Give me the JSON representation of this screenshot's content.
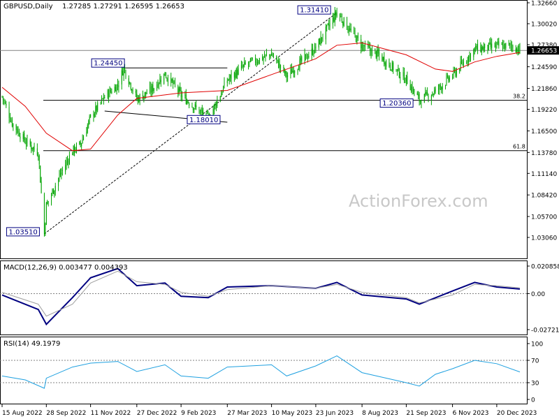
{
  "header": {
    "symbol": "GBPUSD,Daily",
    "quote": "1.27285 1.27291 1.26595 1.26653",
    "watermark": "ActionForex.com"
  },
  "colors": {
    "candle": "#00a400",
    "ma": "#e00000",
    "macd_line": "#000080",
    "macd_signal": "#a0a0a0",
    "rsi": "#1ea0e0",
    "grid": "#000000",
    "price_tag_bg": "#000000"
  },
  "chart_data": [
    {
      "type": "candlestick",
      "title": "GBPUSD,Daily",
      "last_price": "1.26653",
      "y_ticks": [
        "1.32660",
        "1.30020",
        "1.27380",
        "1.24590",
        "1.21860",
        "1.19220",
        "1.16500",
        "1.13780",
        "1.11140",
        "1.08420",
        "1.05700",
        "1.03060"
      ],
      "ylim": [
        1.0306,
        1.3266
      ],
      "x_ticks": [
        "15 Aug 2022",
        "28 Sep 2022",
        "11 Nov 2022",
        "27 Dec 2022",
        "9 Feb 2023",
        "27 Mar 2023",
        "10 May 2023",
        "23 Jun 2023",
        "8 Aug 2023",
        "21 Sep 2023",
        "6 Nov 2023",
        "20 Dec 2023"
      ],
      "close_path": [
        [
          "15 Aug 2022",
          1.2085
        ],
        [
          "2022-08-25",
          1.175
        ],
        [
          "2022-09-07",
          1.152
        ],
        [
          "2022-09-20",
          1.138
        ],
        [
          "2022-09-26",
          1.0351
        ],
        [
          "28 Sep 2022",
          1.071
        ],
        [
          "2022-10-10",
          1.105
        ],
        [
          "2022-10-24",
          1.14
        ],
        [
          "2022-11-01",
          1.148
        ],
        [
          "11 Nov 2022",
          1.182
        ],
        [
          "2022-11-25",
          1.208
        ],
        [
          "2022-12-08",
          1.223
        ],
        [
          "2022-12-14",
          1.2445
        ],
        [
          "27 Dec 2022",
          1.205
        ],
        [
          "2023-01-10",
          1.216
        ],
        [
          "2023-01-24",
          1.237
        ],
        [
          "9 Feb 2023",
          1.21
        ],
        [
          "2023-03-08",
          1.1802
        ],
        [
          "27 Mar 2023",
          1.229
        ],
        [
          "2023-04-14",
          1.248
        ],
        [
          "10 May 2023",
          1.262
        ],
        [
          "2023-05-25",
          1.234
        ],
        [
          "23 Jun 2023",
          1.27
        ],
        [
          "2023-07-14",
          1.3141
        ],
        [
          "8 Aug 2023",
          1.272
        ],
        [
          "2023-08-25",
          1.26
        ],
        [
          "21 Sep 2023",
          1.23
        ],
        [
          "2023-10-04",
          1.2036
        ],
        [
          "2023-10-20",
          1.215
        ],
        [
          "6 Nov 2023",
          1.235
        ],
        [
          "2023-11-28",
          1.268
        ],
        [
          "20 Dec 2023",
          1.272
        ],
        [
          "2024-01-05",
          1.272
        ],
        [
          "2024-01-12",
          1.26653
        ]
      ],
      "ma_path": [
        [
          "15 Aug 2022",
          1.22
        ],
        [
          "2022-09-07",
          1.196
        ],
        [
          "28 Sep 2022",
          1.162
        ],
        [
          "2022-10-24",
          1.14
        ],
        [
          "11 Nov 2022",
          1.142
        ],
        [
          "2022-12-08",
          1.185
        ],
        [
          "27 Dec 2022",
          1.206
        ],
        [
          "9 Feb 2023",
          1.213
        ],
        [
          "27 Mar 2023",
          1.216
        ],
        [
          "10 May 2023",
          1.236
        ],
        [
          "23 Jun 2023",
          1.256
        ],
        [
          "2023-07-14",
          1.273
        ],
        [
          "8 Aug 2023",
          1.276
        ],
        [
          "21 Sep 2023",
          1.261
        ],
        [
          "2023-10-20",
          1.243
        ],
        [
          "6 Nov 2023",
          1.24
        ],
        [
          "2023-11-28",
          1.252
        ],
        [
          "20 Dec 2023",
          1.259
        ],
        [
          "2024-01-12",
          1.264
        ]
      ],
      "annotations": [
        {
          "label": "1.03510",
          "date": "2022-09-26",
          "price": 1.0351
        },
        {
          "label": "1.24450",
          "date": "2022-12-14",
          "price": 1.2445
        },
        {
          "label": "1.18010",
          "date": "2023-03-08",
          "price": 1.1801
        },
        {
          "label": "1.31410",
          "date": "2023-07-14",
          "price": 1.3141
        },
        {
          "label": "1.20360",
          "date": "2023-10-04",
          "price": 1.2036
        }
      ],
      "fib_levels": [
        {
          "label": "38.2",
          "price": 1.2036
        },
        {
          "label": "61.8",
          "price": 1.1401
        }
      ],
      "trend_lines": [
        {
          "style": "dashed",
          "from": [
            "2022-09-26",
            1.0351
          ],
          "to": [
            "2023-07-14",
            1.3141
          ]
        },
        {
          "style": "solid",
          "from": [
            "2022-12-14",
            1.2445
          ],
          "to": [
            "2023-03-27",
            1.2445
          ]
        },
        {
          "style": "solid",
          "from": [
            "2022-11-25",
            1.1901
          ],
          "to": [
            "2023-03-27",
            1.176
          ]
        }
      ],
      "reference_level": 1.26653
    },
    {
      "type": "line",
      "title": "MACD(12,26,9) 0.003477 0.004393",
      "y_ticks": [
        "0.020858",
        "0.00",
        "-0.027213"
      ],
      "ylim": [
        -0.027213,
        0.020858
      ],
      "series": [
        {
          "role": "macd",
          "points": [
            [
              "15 Aug 2022",
              -0.001
            ],
            [
              "2022-09-20",
              -0.012
            ],
            [
              "28 Sep 2022",
              -0.0232
            ],
            [
              "2022-10-24",
              -0.003
            ],
            [
              "11 Nov 2022",
              0.012
            ],
            [
              "2022-12-08",
              0.019
            ],
            [
              "27 Dec 2022",
              0.006
            ],
            [
              "2023-01-24",
              0.008
            ],
            [
              "9 Feb 2023",
              -0.002
            ],
            [
              "2023-03-08",
              -0.003
            ],
            [
              "27 Mar 2023",
              0.005
            ],
            [
              "10 May 2023",
              0.006
            ],
            [
              "23 Jun 2023",
              0.004
            ],
            [
              "2023-07-14",
              0.0085
            ],
            [
              "8 Aug 2023",
              -0.001
            ],
            [
              "21 Sep 2023",
              -0.004
            ],
            [
              "2023-10-04",
              -0.008
            ],
            [
              "6 Nov 2023",
              0.002
            ],
            [
              "2023-11-28",
              0.0085
            ],
            [
              "20 Dec 2023",
              0.005
            ],
            [
              "2024-01-12",
              0.0035
            ]
          ]
        },
        {
          "role": "signal",
          "points": [
            [
              "15 Aug 2022",
              0.001
            ],
            [
              "2022-09-20",
              -0.008
            ],
            [
              "28 Sep 2022",
              -0.017
            ],
            [
              "2022-10-24",
              -0.008
            ],
            [
              "11 Nov 2022",
              0.008
            ],
            [
              "2022-12-08",
              0.017
            ],
            [
              "27 Dec 2022",
              0.009
            ],
            [
              "2023-01-24",
              0.007
            ],
            [
              "9 Feb 2023",
              0.001
            ],
            [
              "2023-03-08",
              -0.002
            ],
            [
              "27 Mar 2023",
              0.003
            ],
            [
              "10 May 2023",
              0.006
            ],
            [
              "23 Jun 2023",
              0.004
            ],
            [
              "2023-07-14",
              0.007
            ],
            [
              "8 Aug 2023",
              0.001
            ],
            [
              "21 Sep 2023",
              -0.003
            ],
            [
              "2023-10-04",
              -0.007
            ],
            [
              "6 Nov 2023",
              -0.001
            ],
            [
              "2023-11-28",
              0.007
            ],
            [
              "20 Dec 2023",
              0.006
            ],
            [
              "2024-01-12",
              0.0044
            ]
          ]
        }
      ]
    },
    {
      "type": "line",
      "title": "RSI(14) 49.1979",
      "y_ticks": [
        "100",
        "70",
        "30",
        "0"
      ],
      "ylim": [
        0,
        100
      ],
      "reference_lines": [
        70,
        30
      ],
      "series": [
        {
          "role": "rsi",
          "points": [
            [
              "15 Aug 2022",
              42
            ],
            [
              "2022-09-07",
              35
            ],
            [
              "2022-09-26",
              20
            ],
            [
              "28 Sep 2022",
              38
            ],
            [
              "2022-10-24",
              58
            ],
            [
              "11 Nov 2022",
              65
            ],
            [
              "2022-12-08",
              68
            ],
            [
              "27 Dec 2022",
              50
            ],
            [
              "2023-01-24",
              62
            ],
            [
              "9 Feb 2023",
              42
            ],
            [
              "2023-03-08",
              38
            ],
            [
              "27 Mar 2023",
              58
            ],
            [
              "10 May 2023",
              62
            ],
            [
              "2023-05-25",
              42
            ],
            [
              "23 Jun 2023",
              60
            ],
            [
              "2023-07-14",
              78
            ],
            [
              "8 Aug 2023",
              48
            ],
            [
              "21 Sep 2023",
              30
            ],
            [
              "2023-10-04",
              24
            ],
            [
              "2023-10-20",
              45
            ],
            [
              "6 Nov 2023",
              55
            ],
            [
              "2023-11-28",
              70
            ],
            [
              "20 Dec 2023",
              64
            ],
            [
              "2024-01-12",
              49.1979
            ]
          ]
        }
      ]
    }
  ]
}
